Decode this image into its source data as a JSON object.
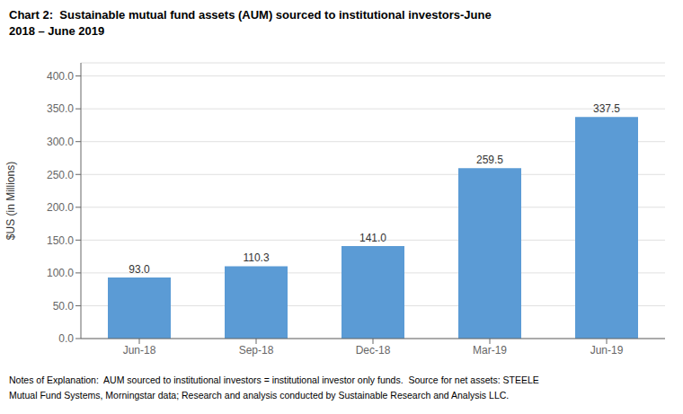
{
  "chart_data": {
    "type": "bar",
    "title": [
      "Chart 2:  Sustainable mutual fund assets (AUM) sourced to institutional investors-June",
      "2018 – June 2019"
    ],
    "annotations": [
      "Notes of Explanation:  AUM sourced to institutional investors = institutional investor only funds.  Source for net assets: STEELE",
      "Mutual Fund Systems, Morningstar data; Research and analysis conducted by Sustainable Research and Analysis LLC."
    ],
    "categories": [
      "Jun-18",
      "Sep-18",
      "Dec-18",
      "Mar-19",
      "Jun-19"
    ],
    "values": [
      93.0,
      110.3,
      141.0,
      259.5,
      337.5
    ],
    "value_labels": [
      "93.0",
      "110.3",
      "141.0",
      "259.5",
      "337.5"
    ],
    "data_labels": true,
    "color": "#5b9bd5",
    "ylabel": "$US (in Millions)",
    "ylim": [
      0,
      420
    ],
    "yticks": [
      {
        "value": 0,
        "label": "0.0"
      },
      {
        "value": 50,
        "label": "50.0"
      },
      {
        "value": 100,
        "label": "100.0"
      },
      {
        "value": 150,
        "label": "150.0"
      },
      {
        "value": 200,
        "label": "200.0"
      },
      {
        "value": 250,
        "label": "250.0"
      },
      {
        "value": 300,
        "label": "300.0"
      },
      {
        "value": 350,
        "label": "350.0"
      },
      {
        "value": 400,
        "label": "400.0"
      }
    ],
    "grid": true
  }
}
